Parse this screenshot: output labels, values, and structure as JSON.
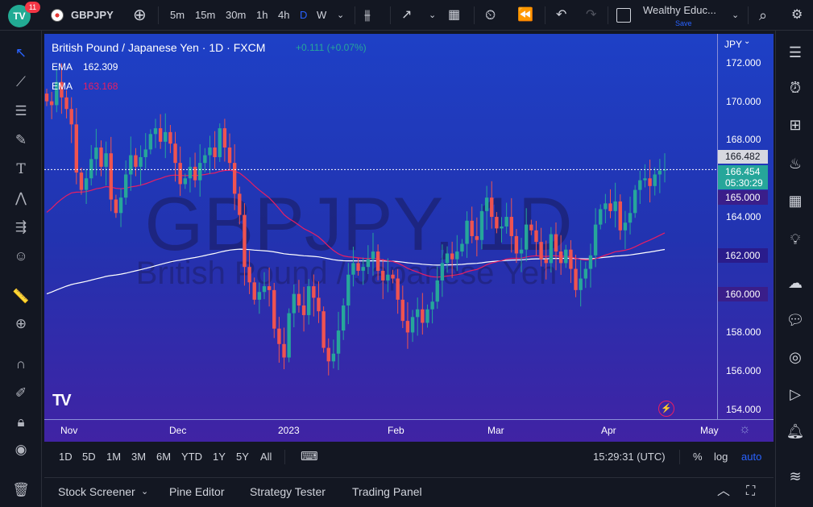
{
  "header": {
    "notifications": "11",
    "symbol": "GBPJPY",
    "intervals": [
      "5m",
      "15m",
      "30m",
      "1h",
      "4h",
      "D",
      "W"
    ],
    "active_interval": "D",
    "layout_name": "Wealthy Educ...",
    "layout_status": "Save"
  },
  "chart": {
    "title": "British Pound / Japanese Yen · 1D · FXCM",
    "change": "+0.111 (+0.07%)",
    "ema1_label": "EMA",
    "ema1_value": "162.309",
    "ema2_label": "EMA",
    "ema2_value": "163.168",
    "watermark_symbol": "GBPJPY, 1D",
    "watermark_name": "British Pound / Japanese Yen",
    "currency": "JPY",
    "last_price": "166.454",
    "countdown": "05:30:29",
    "crosshair_price": "166.482",
    "ema1_tag": "162.000",
    "ema2_tag": "165.000",
    "low_tag": "160.000",
    "price_ticks": [
      "172.000",
      "170.000",
      "168.000",
      "166.000",
      "164.000",
      "162.000",
      "160.000",
      "158.000",
      "156.000",
      "154.000"
    ],
    "time_ticks": [
      "Nov",
      "Dec",
      "2023",
      "Feb",
      "Mar",
      "Apr",
      "May"
    ],
    "up_color": "#26a69a",
    "down_color": "#ef5350"
  },
  "range_bar": {
    "ranges": [
      "1D",
      "5D",
      "1M",
      "3M",
      "6M",
      "YTD",
      "1Y",
      "5Y",
      "All"
    ],
    "clock": "15:29:31 (UTC)",
    "percent": "%",
    "log": "log",
    "auto": "auto"
  },
  "bottom_panel": {
    "tabs": [
      "Stock Screener",
      "Pine Editor",
      "Strategy Tester",
      "Trading Panel"
    ]
  },
  "chart_data": {
    "type": "candlestick",
    "title": "British Pound / Japanese Yen · 1D · FXCM",
    "ylim": [
      153.5,
      173.5
    ],
    "y_ticks": [
      154,
      156,
      158,
      160,
      162,
      164,
      166,
      168,
      170,
      172
    ],
    "x_labels": [
      "Nov",
      "Dec",
      "2023",
      "Feb",
      "Mar",
      "Apr",
      "May"
    ],
    "close_series": [
      170.0,
      169.8,
      171.0,
      170.2,
      169.6,
      168.8,
      166.3,
      165.4,
      166.0,
      167.0,
      167.6,
      166.6,
      167.3,
      164.9,
      164.2,
      165.0,
      166.2,
      167.2,
      166.6,
      167.1,
      167.5,
      168.3,
      168.6,
      167.9,
      168.4,
      167.8,
      166.8,
      165.7,
      166.0,
      166.6,
      165.9,
      166.8,
      167.2,
      167.6,
      167.1,
      168.6,
      167.6,
      166.8,
      165.2,
      164.1,
      161.4,
      160.6,
      159.7,
      160.1,
      160.4,
      160.2,
      158.2,
      157.4,
      156.7,
      159.0,
      160.0,
      159.4,
      158.9,
      160.4,
      159.8,
      159.1,
      157.2,
      156.5,
      156.9,
      158.1,
      159.4,
      161.0,
      161.6,
      161.2,
      161.4,
      161.8,
      162.2,
      161.2,
      160.7,
      161.0,
      160.8,
      159.7,
      158.6,
      158.0,
      158.8,
      159.2,
      158.5,
      159.2,
      159.6,
      160.7,
      161.6,
      162.1,
      161.8,
      162.2,
      162.6,
      163.8,
      163.0,
      162.8,
      164.3,
      165.0,
      164.0,
      163.4,
      163.5,
      164.0,
      163.0,
      162.1,
      162.3,
      163.6,
      163.3,
      162.7,
      161.8,
      161.6,
      163.1,
      162.2,
      161.6,
      162.3,
      161.3,
      160.2,
      160.8,
      161.3,
      162.0,
      163.6,
      164.4,
      164.7,
      164.3,
      164.8,
      163.3,
      163.7,
      164.2,
      165.4,
      165.9,
      166.0,
      165.6,
      166.2,
      166.4,
      166.454
    ],
    "ema_series": [
      {
        "name": "EMA",
        "period_note": "",
        "color": "#ffffff",
        "start": 159.9,
        "end": 162.309
      },
      {
        "name": "EMA",
        "period_note": "",
        "color": "#e91e63",
        "start": 164.0,
        "end": 163.168
      }
    ],
    "last_price": 166.454
  }
}
